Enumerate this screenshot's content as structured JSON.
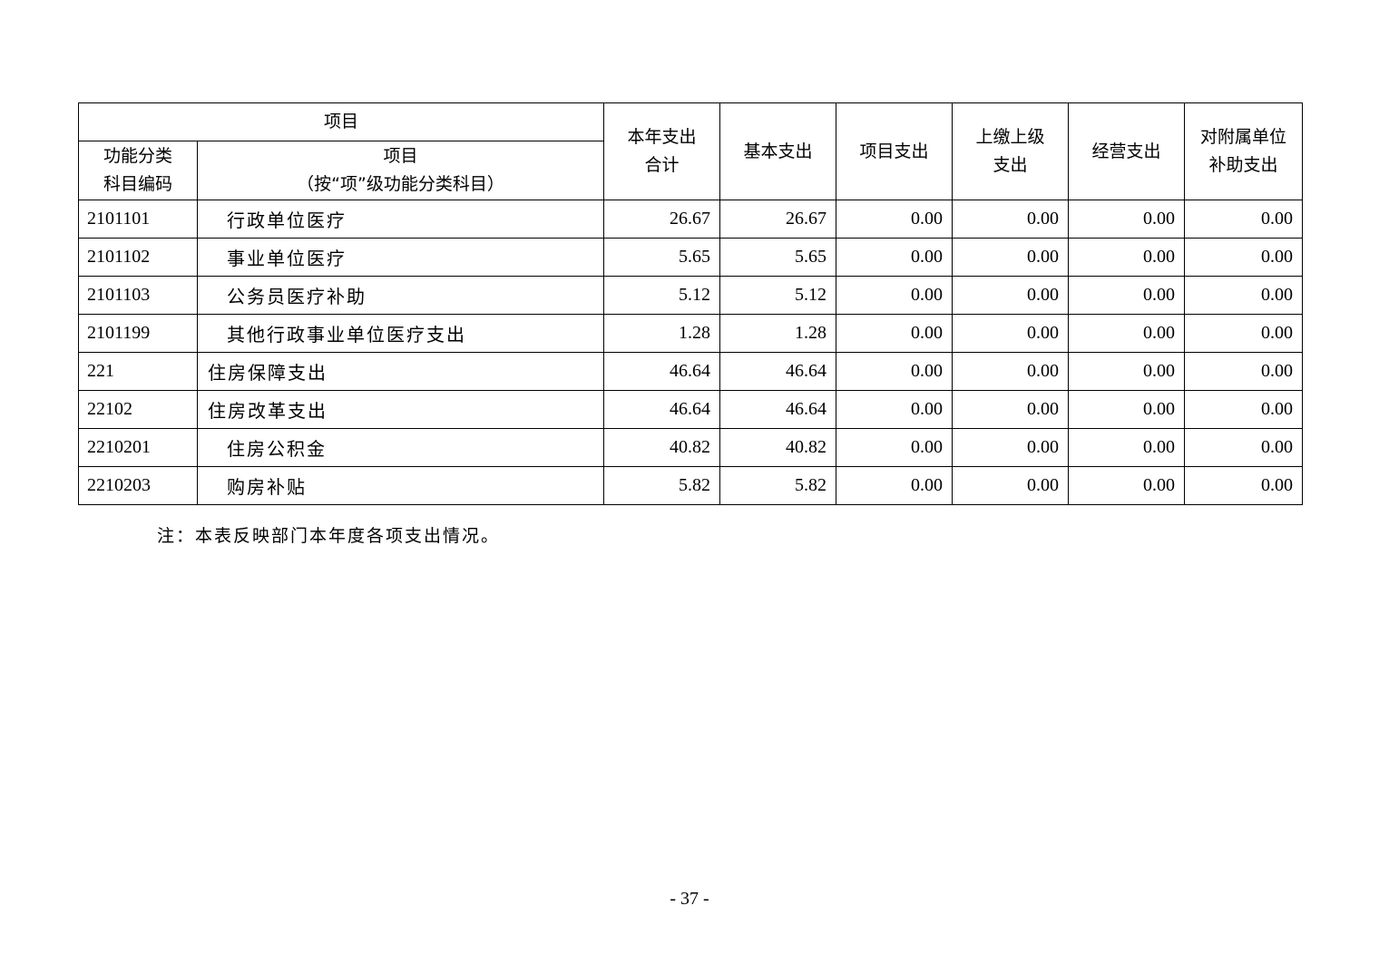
{
  "table": {
    "header": {
      "group": "项目",
      "code": [
        "功能分类",
        "科目编码"
      ],
      "name": [
        "项目",
        "（按“项”级功能分类科目）"
      ],
      "cols": [
        [
          "本年支出",
          "合计"
        ],
        [
          "基本支出"
        ],
        [
          "项目支出"
        ],
        [
          "上缴上级",
          "支出"
        ],
        [
          "经营支出"
        ],
        [
          "对附属单位",
          "补助支出"
        ]
      ]
    },
    "rows": [
      {
        "code": "2101101",
        "name": "行政单位医疗",
        "level": 2,
        "values": [
          "26.67",
          "26.67",
          "0.00",
          "0.00",
          "0.00",
          "0.00"
        ]
      },
      {
        "code": "2101102",
        "name": "事业单位医疗",
        "level": 2,
        "values": [
          "5.65",
          "5.65",
          "0.00",
          "0.00",
          "0.00",
          "0.00"
        ]
      },
      {
        "code": "2101103",
        "name": "公务员医疗补助",
        "level": 2,
        "values": [
          "5.12",
          "5.12",
          "0.00",
          "0.00",
          "0.00",
          "0.00"
        ]
      },
      {
        "code": "2101199",
        "name": "其他行政事业单位医疗支出",
        "level": 2,
        "values": [
          "1.28",
          "1.28",
          "0.00",
          "0.00",
          "0.00",
          "0.00"
        ]
      },
      {
        "code": "221",
        "name": "住房保障支出",
        "level": 1,
        "values": [
          "46.64",
          "46.64",
          "0.00",
          "0.00",
          "0.00",
          "0.00"
        ]
      },
      {
        "code": "22102",
        "name": "住房改革支出",
        "level": 1,
        "values": [
          "46.64",
          "46.64",
          "0.00",
          "0.00",
          "0.00",
          "0.00"
        ]
      },
      {
        "code": "2210201",
        "name": "住房公积金",
        "level": 2,
        "values": [
          "40.82",
          "40.82",
          "0.00",
          "0.00",
          "0.00",
          "0.00"
        ]
      },
      {
        "code": "2210203",
        "name": "购房补贴",
        "level": 2,
        "values": [
          "5.82",
          "5.82",
          "0.00",
          "0.00",
          "0.00",
          "0.00"
        ]
      }
    ]
  },
  "note": "注：本表反映部门本年度各项支出情况。",
  "page_number": "- 37 -"
}
